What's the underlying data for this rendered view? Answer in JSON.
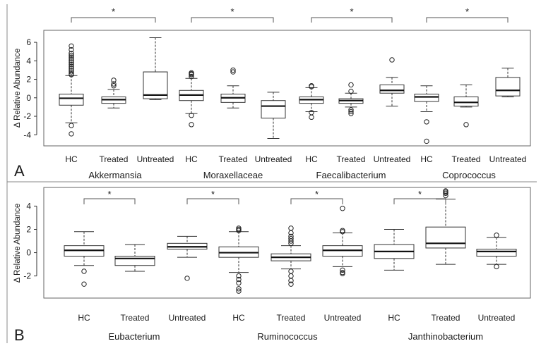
{
  "chart_data": [
    {
      "type": "boxplot",
      "panel_label": "A",
      "ylabel": "Δ Relative Abundance",
      "ylim": [
        -5.2,
        7.3
      ],
      "yticks": [
        -4,
        -2,
        0,
        2,
        4,
        6
      ],
      "groups": [
        {
          "name": "Akkermansia",
          "boxes": [
            {
              "label": "HC",
              "whisker_low": -2.7,
              "q1": -0.8,
              "median": -0.05,
              "q3": 0.4,
              "whisker_high": 2.4,
              "outliers": [
                -3.0,
                -3.9,
                2.5,
                2.6,
                2.8,
                3.0,
                3.2,
                3.4,
                3.6,
                3.8,
                4.0,
                4.2,
                4.4,
                4.6,
                4.8,
                5.2,
                5.6
              ]
            },
            {
              "label": "Treated",
              "whisker_low": -1.1,
              "q1": -0.6,
              "median": -0.2,
              "q3": 0.1,
              "whisker_high": 0.9,
              "outliers": [
                1.3,
                1.5,
                1.9
              ]
            },
            {
              "label": "Untreated",
              "whisker_low": -0.2,
              "q1": -0.1,
              "median": 0.3,
              "q3": 2.8,
              "whisker_high": 6.5,
              "outliers": []
            }
          ],
          "significance": {
            "from": 0,
            "to": 2,
            "label": "*"
          }
        },
        {
          "name": "Moraxellaceae",
          "boxes": [
            {
              "label": "HC",
              "whisker_low": -1.7,
              "q1": -0.3,
              "median": 0.3,
              "q3": 0.8,
              "whisker_high": 2.1,
              "outliers": [
                -1.9,
                -2.9,
                2.3,
                2.5,
                2.6,
                2.7
              ]
            },
            {
              "label": "Treated",
              "whisker_low": -1.1,
              "q1": -0.5,
              "median": 0.0,
              "q3": 0.4,
              "whisker_high": 1.3,
              "outliers": [
                2.8,
                3.0
              ]
            },
            {
              "label": "Untreated",
              "whisker_low": -4.4,
              "q1": -2.2,
              "median": -0.9,
              "q3": -0.3,
              "whisker_high": 0.6,
              "outliers": []
            }
          ],
          "significance": {
            "from": 0,
            "to": 2,
            "label": "*"
          }
        },
        {
          "name": "Faecalibacterium",
          "boxes": [
            {
              "label": "HC",
              "whisker_low": -1.5,
              "q1": -0.6,
              "median": -0.2,
              "q3": 0.1,
              "whisker_high": 1.1,
              "outliers": [
                -1.6,
                -2.1,
                1.2,
                1.3
              ]
            },
            {
              "label": "Treated",
              "whisker_low": -1.0,
              "q1": -0.6,
              "median": -0.3,
              "q3": -0.1,
              "whisker_high": 0.5,
              "outliers": [
                -1.3,
                -1.5,
                -1.7,
                0.7,
                1.4
              ]
            },
            {
              "label": "Untreated",
              "whisker_low": -0.9,
              "q1": 0.5,
              "median": 0.8,
              "q3": 1.4,
              "whisker_high": 2.2,
              "outliers": [
                4.1
              ]
            }
          ],
          "significance": {
            "from": 0,
            "to": 2,
            "label": "*"
          }
        },
        {
          "name": "Coprococcus",
          "boxes": [
            {
              "label": "HC",
              "whisker_low": -1.5,
              "q1": -0.4,
              "median": 0.1,
              "q3": 0.4,
              "whisker_high": 1.3,
              "outliers": [
                -2.6,
                -4.7
              ]
            },
            {
              "label": "Treated",
              "whisker_low": -1.0,
              "q1": -0.9,
              "median": -0.5,
              "q3": 0.1,
              "whisker_high": 1.4,
              "outliers": [
                -2.9
              ]
            },
            {
              "label": "Untreated",
              "whisker_low": 0.1,
              "q1": 0.2,
              "median": 0.8,
              "q3": 2.2,
              "whisker_high": 3.2,
              "outliers": []
            }
          ],
          "significance": {
            "from": 0,
            "to": 2,
            "label": "*"
          }
        }
      ]
    },
    {
      "type": "boxplot",
      "panel_label": "B",
      "ylabel": "Δ Relative Abundance",
      "ylim": [
        -3.9,
        5.6
      ],
      "yticks": [
        -2,
        0,
        2,
        4
      ],
      "groups": [
        {
          "name": "Eubacterium",
          "boxes": [
            {
              "label": "HC",
              "whisker_low": -1.1,
              "q1": -0.3,
              "median": 0.2,
              "q3": 0.6,
              "whisker_high": 1.8,
              "outliers": [
                -1.6,
                -2.7
              ]
            },
            {
              "label": "Treated",
              "whisker_low": -1.6,
              "q1": -1.1,
              "median": -0.5,
              "q3": -0.3,
              "whisker_high": 0.7,
              "outliers": []
            }
          ],
          "significance": {
            "from": 0,
            "to": 1,
            "label": "*"
          }
        },
        {
          "name": "Ruminococcus",
          "boxes": [
            {
              "label": "Untreated",
              "whisker_low": -0.4,
              "q1": 0.3,
              "median": 0.5,
              "q3": 0.8,
              "whisker_high": 1.4,
              "outliers": [
                -2.2
              ]
            },
            {
              "label": "HC",
              "whisker_low": -1.7,
              "q1": -0.4,
              "median": 0.0,
              "q3": 0.5,
              "whisker_high": 1.8,
              "outliers": [
                -2.0,
                -2.3,
                -2.6,
                -3.1,
                -3.3,
                1.9,
                2.0,
                2.1
              ]
            },
            {
              "label": "Treated",
              "whisker_low": -1.4,
              "q1": -0.7,
              "median": -0.4,
              "q3": -0.1,
              "whisker_high": 0.6,
              "outliers": [
                -1.6,
                -2.0,
                -2.4,
                -2.7,
                0.8,
                1.0,
                1.2,
                1.4,
                1.7,
                2.1
              ]
            },
            {
              "label": "Untreated",
              "whisker_low": -1.2,
              "q1": -0.3,
              "median": 0.2,
              "q3": 0.6,
              "whisker_high": 1.7,
              "outliers": [
                -1.5,
                -1.7,
                -1.8,
                1.8,
                1.9,
                3.8
              ]
            }
          ],
          "significance_pairs": [
            {
              "from": 0,
              "to": 1,
              "label": "*"
            },
            {
              "from": 2,
              "to": 3,
              "label": "*"
            }
          ]
        },
        {
          "name": "Janthinobacterium",
          "boxes": [
            {
              "label": "HC",
              "whisker_low": -1.5,
              "q1": -0.5,
              "median": 0.1,
              "q3": 0.7,
              "whisker_high": 2.0,
              "outliers": []
            },
            {
              "label": "Treated",
              "whisker_low": -1.0,
              "q1": 0.4,
              "median": 0.8,
              "q3": 2.2,
              "whisker_high": 4.6,
              "outliers": [
                4.9,
                5.1,
                5.2,
                5.3
              ]
            },
            {
              "label": "Untreated",
              "whisker_low": -1.0,
              "q1": -0.3,
              "median": 0.1,
              "q3": 0.3,
              "whisker_high": 1.3,
              "outliers": [
                -1.2,
                1.5
              ]
            }
          ],
          "significance": {
            "from": 0,
            "to": 1,
            "label": "*"
          }
        }
      ]
    }
  ],
  "colors": {
    "box_stroke": "#333333",
    "border": "#666666",
    "text": "#1a1a1a"
  }
}
